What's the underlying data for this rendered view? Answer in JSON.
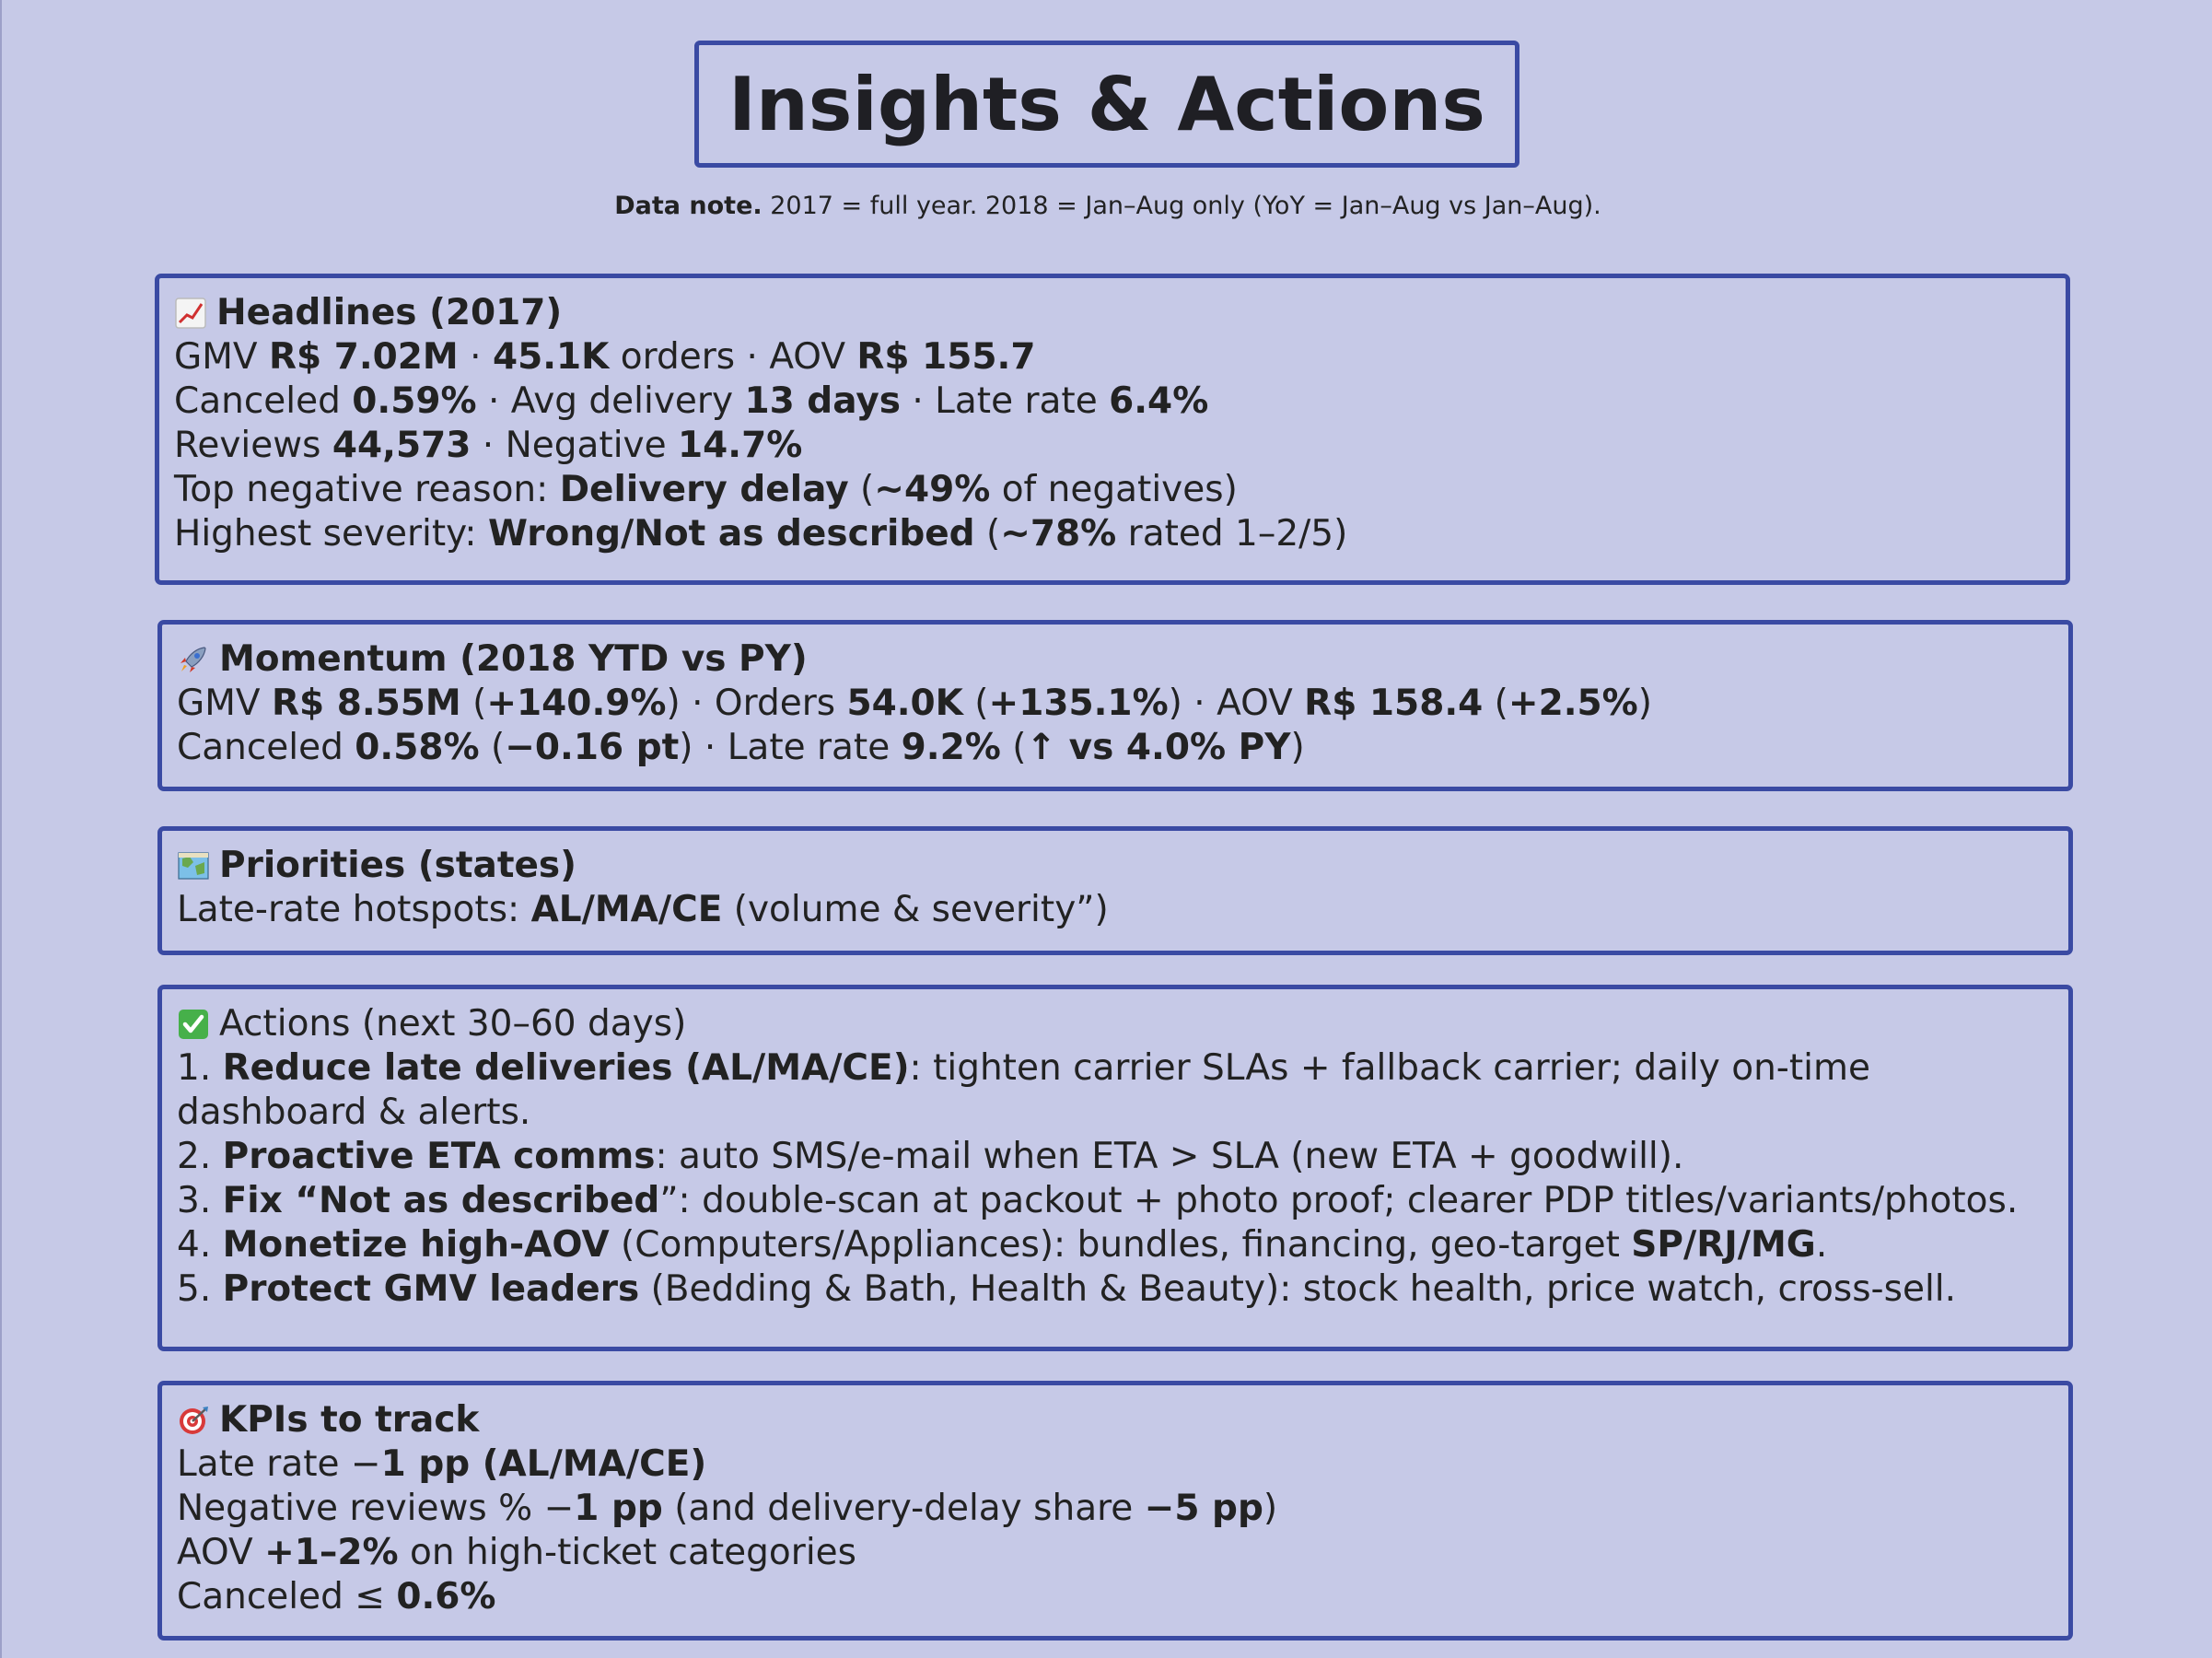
{
  "header": {
    "title": "Insights & Actions",
    "note_label": "Data note.",
    "note_text": " 2017 = full year. 2018 = Jan–Aug only (YoY = Jan–Aug vs Jan–Aug)."
  },
  "headlines": {
    "icon": "chart-increasing-icon",
    "title": "Headlines (2017)",
    "gmv_label": "GMV ",
    "gmv_value": "R$ 7.02M",
    "sep1": " · ",
    "orders_value": "45.1K",
    "orders_label": " orders",
    "sep2": " · ",
    "aov_label": "AOV ",
    "aov_value": "R$ 155.7",
    "canceled_label": "Canceled ",
    "canceled_value": "0.59%",
    "sep3": " · ",
    "delivery_label": "Avg delivery ",
    "delivery_value": "13 days",
    "sep4": " · ",
    "late_label": "Late rate ",
    "late_value": "6.4%",
    "reviews_label": "Reviews ",
    "reviews_value": "44,573",
    "sep5": " · ",
    "negative_label": "Negative ",
    "negative_value": "14.7%",
    "reason_label": "Top negative reason: ",
    "reason_value": "Delivery delay",
    "reason_open": " (",
    "reason_pct": "~49%",
    "reason_tail": " of negatives)",
    "severity_label": "Highest severity: ",
    "severity_value": "Wrong/Not as described",
    "severity_open": " (",
    "severity_pct": "~78%",
    "severity_tail": " rated 1–2/5)"
  },
  "momentum": {
    "icon": "rocket-icon",
    "title": "Momentum (2018 YTD vs PY)",
    "gmv_label": "GMV ",
    "gmv_value": "R$ 8.55M",
    "gmv_open": " (",
    "gmv_change": "+140.9%",
    "gmv_close": ")",
    "sep1": " · ",
    "orders_label": "Orders ",
    "orders_value": "54.0K",
    "orders_open": " (",
    "orders_change": "+135.1%",
    "orders_close": ")",
    "sep2": " · ",
    "aov_label": "AOV ",
    "aov_value": "R$ 158.4",
    "aov_open": " (",
    "aov_change": "+2.5%",
    "aov_close": ")",
    "canceled_label": "Canceled ",
    "canceled_value": "0.58%",
    "canceled_open": " (",
    "canceled_change": "−0.16 pt",
    "canceled_close": ")",
    "sep3": " · ",
    "late_label": "Late rate ",
    "late_value": "9.2%",
    "late_open": " (",
    "late_change": "↑ vs 4.0% PY",
    "late_close": ")"
  },
  "priorities": {
    "icon": "map-icon",
    "title": "Priorities (states)",
    "label": "Late-rate hotspots: ",
    "value": "AL/MA/CE",
    "tail": " (volume & severity”)"
  },
  "actions": {
    "icon": "check-mark-icon",
    "title": "Actions (next 30–60 days)",
    "items": [
      {
        "num": "1. ",
        "bold": "Reduce late deliveries (AL/MA/CE)",
        "text": ": tighten carrier SLAs + fallback carrier; daily on-time dashboard & alerts."
      },
      {
        "num": "2. ",
        "bold": "Proactive ETA comms",
        "text": ": auto SMS/e-mail when ETA > SLA (new ETA + goodwill)."
      },
      {
        "num": "3. ",
        "bold": "Fix “Not as described",
        "text": "”: double-scan at packout + photo proof; clearer PDP titles/variants/photos."
      },
      {
        "num": "4. ",
        "bold": "Monetize high-AOV",
        "text": " (Computers/Appliances): bundles, financing, geo-target ",
        "bold2": "SP/RJ/MG",
        "text2": "."
      },
      {
        "num": "5. ",
        "bold": "Protect GMV leaders",
        "text": " (Bedding & Bath, Health & Beauty): stock health, price watch, cross-sell."
      }
    ]
  },
  "kpis": {
    "icon": "target-icon",
    "title": "KPIs to track",
    "k1_label": "Late rate −",
    "k1_value": "1 pp (AL/MA/CE)",
    "k2_label": "Negative reviews % −",
    "k2_value": "1 pp",
    "k2_mid": " (and delivery-delay share ",
    "k2_value2": "−5 pp",
    "k2_close": ")",
    "k3_label": "AOV ",
    "k3_value": "+1–2%",
    "k3_tail": " on high-ticket categories",
    "k4_label": "Canceled ≤ ",
    "k4_value": "0.6%"
  }
}
